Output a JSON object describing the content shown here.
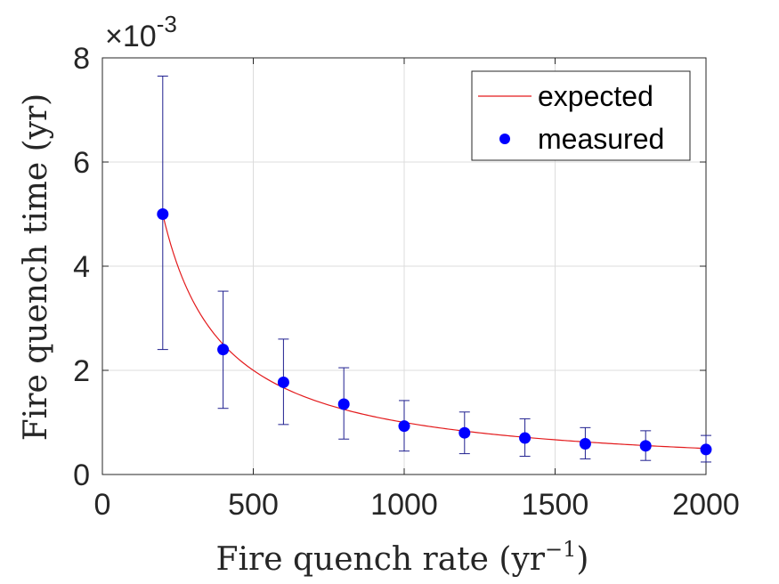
{
  "chart_data": {
    "type": "scatter",
    "xlabel": "Fire quench rate (yr",
    "xlabel_sup": "−1",
    "xlabel_end": ")",
    "ylabel": "Fire quench time (yr)",
    "y_multiplier_base": "×10",
    "y_multiplier_exp": "-3",
    "xlim": [
      0,
      2000
    ],
    "ylim": [
      0,
      8
    ],
    "x_ticks": [
      "0",
      "500",
      "1000",
      "1500",
      "2000"
    ],
    "y_ticks": [
      "0",
      "2",
      "4",
      "6",
      "8"
    ],
    "grid": true,
    "legend_position": "top-right",
    "colors": {
      "expected": "#e31a1c",
      "measured": "#0000ff",
      "errorbar": "#1f1f8f"
    },
    "series": [
      {
        "name": "expected",
        "kind": "line",
        "function": "1/x",
        "x_range": [
          200,
          2000
        ]
      },
      {
        "name": "measured",
        "kind": "scatter",
        "x": [
          200,
          400,
          600,
          800,
          1000,
          1200,
          1400,
          1600,
          1800,
          2000
        ],
        "y": [
          5.0,
          2.4,
          1.77,
          1.35,
          0.93,
          0.8,
          0.7,
          0.59,
          0.55,
          0.48
        ],
        "err_low": [
          2.4,
          1.27,
          0.96,
          0.68,
          0.45,
          0.4,
          0.35,
          0.3,
          0.27,
          0.24
        ],
        "err_high": [
          7.65,
          3.52,
          2.6,
          2.05,
          1.42,
          1.2,
          1.07,
          0.9,
          0.84,
          0.75
        ]
      }
    ]
  }
}
